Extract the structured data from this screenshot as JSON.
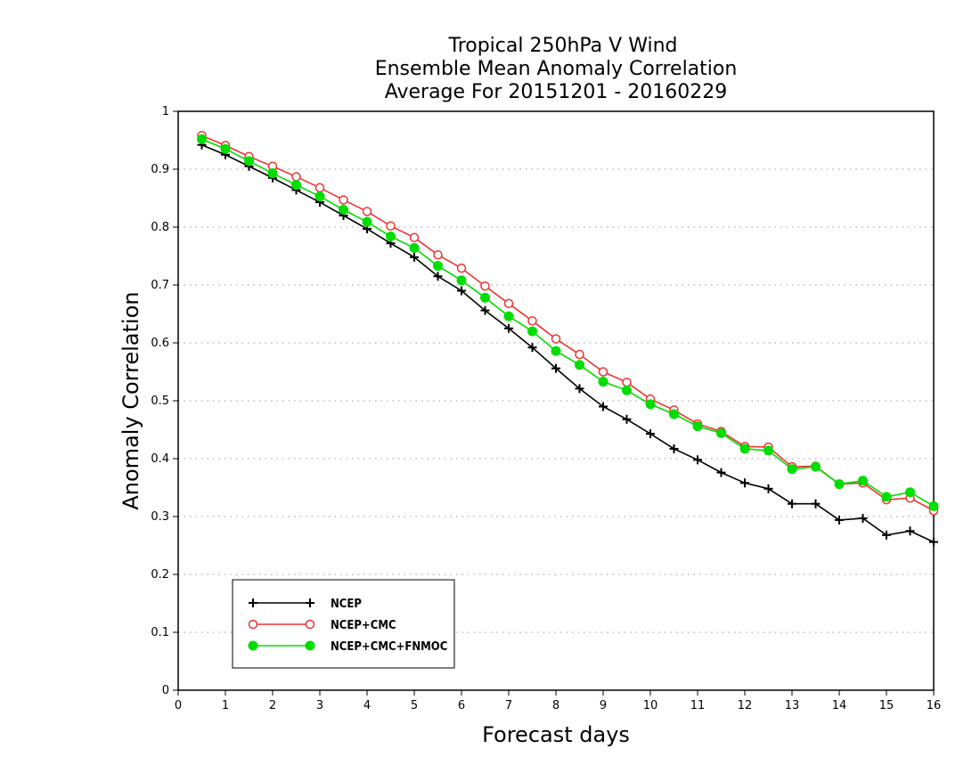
{
  "chart_data": {
    "type": "line",
    "title_lines": [
      "Tropical 250hPa V Wind",
      "Ensemble Mean Anomaly Correlation",
      "Average For 20151201 - 20160229"
    ],
    "xlabel": "Forecast days",
    "ylabel": "Anomaly Correlation",
    "xlim": [
      0,
      16
    ],
    "ylim": [
      0,
      1
    ],
    "x_ticks": [
      "0",
      "1",
      "2",
      "3",
      "4",
      "5",
      "6",
      "7",
      "8",
      "9",
      "10",
      "11",
      "12",
      "13",
      "14",
      "15",
      "16"
    ],
    "y_ticks": [
      "0",
      "0.1",
      "0.2",
      "0.3",
      "0.4",
      "0.5",
      "0.6",
      "0.7",
      "0.8",
      "0.9",
      "1"
    ],
    "grid": "horizontal-dotted",
    "legend_position": "bottom-left",
    "x": [
      0.5,
      1,
      1.5,
      2,
      2.5,
      3,
      3.5,
      4,
      4.5,
      5,
      5.5,
      6,
      6.5,
      7,
      7.5,
      8,
      8.5,
      9,
      9.5,
      10,
      10.5,
      11,
      11.5,
      12,
      12.5,
      13,
      13.5,
      14,
      14.5,
      15,
      15.5,
      16
    ],
    "series": [
      {
        "name": "NCEP",
        "color": "#000000",
        "marker": "plus",
        "values": [
          0.942,
          0.925,
          0.905,
          0.885,
          0.864,
          0.843,
          0.82,
          0.797,
          0.772,
          0.748,
          0.715,
          0.69,
          0.656,
          0.625,
          0.592,
          0.556,
          0.521,
          0.49,
          0.468,
          0.443,
          0.417,
          0.398,
          0.376,
          0.358,
          0.348,
          0.322,
          0.322,
          0.294,
          0.297,
          0.268,
          0.275,
          0.256
        ]
      },
      {
        "name": "NCEP+CMC",
        "color": "#ee3333",
        "marker": "open-circle",
        "values": [
          0.958,
          0.941,
          0.922,
          0.905,
          0.887,
          0.868,
          0.847,
          0.827,
          0.802,
          0.782,
          0.752,
          0.729,
          0.698,
          0.668,
          0.638,
          0.607,
          0.58,
          0.55,
          0.532,
          0.503,
          0.484,
          0.46,
          0.447,
          0.421,
          0.42,
          0.386,
          0.387,
          0.356,
          0.358,
          0.329,
          0.332,
          0.31
        ]
      },
      {
        "name": "NCEP+CMC+FNMOC",
        "color": "#00dd00",
        "marker": "filled-circle",
        "values": [
          0.952,
          0.935,
          0.914,
          0.893,
          0.873,
          0.853,
          0.83,
          0.809,
          0.784,
          0.764,
          0.733,
          0.708,
          0.678,
          0.646,
          0.62,
          0.586,
          0.562,
          0.533,
          0.518,
          0.494,
          0.477,
          0.456,
          0.444,
          0.417,
          0.414,
          0.382,
          0.386,
          0.356,
          0.362,
          0.334,
          0.342,
          0.318
        ]
      }
    ]
  }
}
